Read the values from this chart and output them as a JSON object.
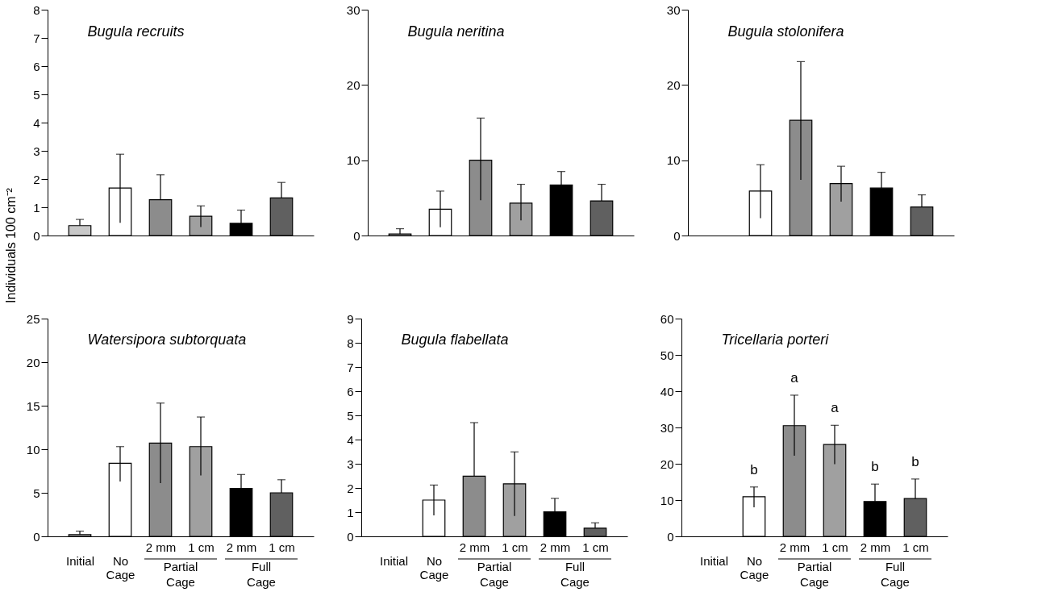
{
  "chart_data": [
    {
      "type": "bar",
      "title": "Bugula recruits",
      "ylabel": "Individuals 100 cm⁻²",
      "categories": [
        null,
        null,
        null,
        null,
        null,
        null
      ],
      "tick_labels": "y",
      "ylim": [
        0,
        8
      ],
      "yticks": [
        0,
        1,
        2,
        3,
        4,
        5,
        6,
        7,
        8
      ],
      "values": [
        0.35,
        1.68,
        1.27,
        0.68,
        0.43,
        1.33
      ],
      "errors": [
        [
          0.35,
          0.57
        ],
        [
          0.45,
          2.88
        ],
        [
          1.27,
          2.15
        ],
        [
          0.3,
          1.05
        ],
        [
          0.43,
          0.9
        ],
        [
          1.33,
          1.88
        ]
      ],
      "colors": [
        "#c8c8c8",
        "#ffffff",
        "#8c8c8c",
        "#a0a0a0",
        "#000000",
        "#606060"
      ]
    },
    {
      "type": "bar",
      "title": "Bugula neritina",
      "categories": [
        null,
        null,
        null,
        null,
        null,
        null
      ],
      "tick_labels": "y",
      "ylim": [
        0,
        30
      ],
      "yticks": [
        0,
        10,
        20,
        30
      ],
      "values": [
        0.2,
        3.5,
        10.0,
        4.3,
        6.7,
        4.6
      ],
      "errors": [
        [
          0.2,
          0.9
        ],
        [
          1.1,
          5.9
        ],
        [
          4.7,
          15.6
        ],
        [
          2.0,
          6.8
        ],
        [
          6.7,
          8.5
        ],
        [
          4.6,
          6.8
        ]
      ],
      "colors": [
        "#c8c8c8",
        "#ffffff",
        "#8c8c8c",
        "#a0a0a0",
        "#000000",
        "#606060"
      ]
    },
    {
      "type": "bar",
      "title": "Bugula stolonifera",
      "categories": [
        null,
        null,
        null,
        null,
        null,
        null
      ],
      "tick_labels": "y",
      "ylim": [
        0,
        30
      ],
      "yticks": [
        0,
        10,
        20,
        30
      ],
      "values": [
        null,
        5.9,
        15.3,
        6.9,
        6.3,
        3.8
      ],
      "errors": [
        null,
        [
          2.3,
          9.4
        ],
        [
          7.4,
          23.1
        ],
        [
          4.5,
          9.2
        ],
        [
          6.3,
          8.4
        ],
        [
          3.8,
          5.4
        ]
      ],
      "colors": [
        "#c8c8c8",
        "#ffffff",
        "#8c8c8c",
        "#a0a0a0",
        "#000000",
        "#606060"
      ]
    },
    {
      "type": "bar",
      "title": "Watersipora subtorquata",
      "categories": [
        "Initial",
        "No\nCage",
        "2 mm",
        "1 cm",
        "2 mm",
        "1 cm"
      ],
      "annotations": [
        "Partial\nCage",
        "Full\nCage"
      ],
      "ylim": [
        0,
        25
      ],
      "yticks": [
        0,
        5,
        10,
        15,
        20,
        25
      ],
      "values": [
        0.2,
        8.4,
        10.7,
        10.3,
        5.5,
        5.0
      ],
      "errors": [
        [
          0.2,
          0.6
        ],
        [
          6.3,
          10.3
        ],
        [
          6.1,
          15.3
        ],
        [
          7.0,
          13.7
        ],
        [
          5.5,
          7.1
        ],
        [
          5.0,
          6.5
        ]
      ],
      "colors": [
        "#c8c8c8",
        "#ffffff",
        "#8c8c8c",
        "#a0a0a0",
        "#000000",
        "#606060"
      ]
    },
    {
      "type": "bar",
      "title": "Bugula flabellata",
      "categories": [
        "Initial",
        "No\nCage",
        "2 mm",
        "1 cm",
        "2 mm",
        "1 cm"
      ],
      "annotations": [
        "Partial\nCage",
        "Full\nCage"
      ],
      "ylim": [
        0,
        9
      ],
      "yticks": [
        0,
        1,
        2,
        3,
        4,
        5,
        6,
        7,
        8,
        9
      ],
      "values": [
        null,
        1.5,
        2.49,
        2.17,
        1.01,
        0.34
      ],
      "errors": [
        null,
        [
          0.87,
          2.12
        ],
        [
          2.49,
          4.7
        ],
        [
          0.84,
          3.49
        ],
        [
          1.01,
          1.57
        ],
        [
          0.34,
          0.56
        ]
      ],
      "colors": [
        "#c8c8c8",
        "#ffffff",
        "#8c8c8c",
        "#a0a0a0",
        "#000000",
        "#606060"
      ]
    },
    {
      "type": "bar",
      "title": "Tricellaria porteri",
      "categories": [
        "Initial",
        "No\nCage",
        "2 mm",
        "1 cm",
        "2 mm",
        "1 cm"
      ],
      "ylim": [
        0,
        60
      ],
      "yticks": [
        0,
        10,
        20,
        30,
        40,
        50,
        60
      ],
      "annotations": [
        "Partial\nCage",
        "Full\nCage",
        "b",
        "a",
        "a",
        "b",
        "b"
      ],
      "values": [
        null,
        10.9,
        30.5,
        25.3,
        9.6,
        10.4
      ],
      "errors": [
        null,
        [
          8.0,
          13.6
        ],
        [
          22.2,
          38.9
        ],
        [
          19.9,
          30.6
        ],
        [
          9.6,
          14.4
        ],
        [
          10.4,
          15.8
        ]
      ],
      "colors": [
        "#c8c8c8",
        "#ffffff",
        "#8c8c8c",
        "#a0a0a0",
        "#000000",
        "#606060"
      ]
    }
  ]
}
